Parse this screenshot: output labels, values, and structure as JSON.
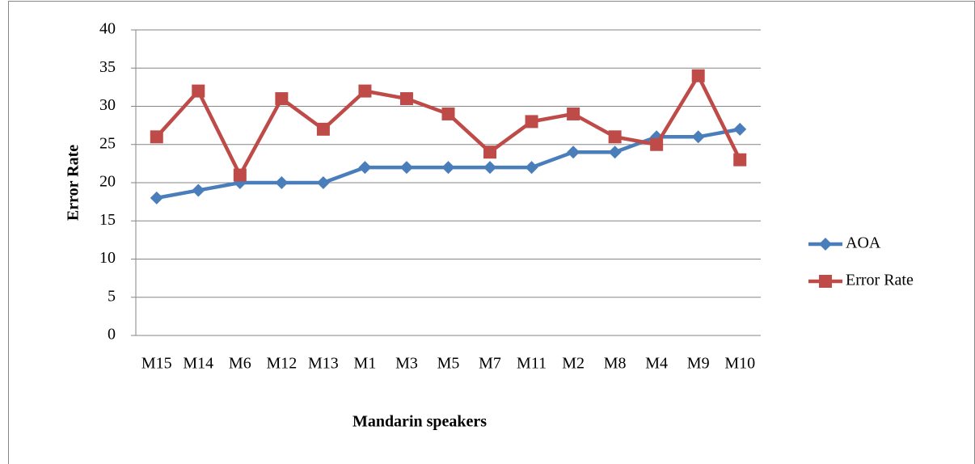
{
  "chart_data": {
    "type": "line",
    "y_label": "Error Rate",
    "x_label": "Mandarin speakers",
    "categories": [
      "M15",
      "M14",
      "M6",
      "M12",
      "M13",
      "M1",
      "M3",
      "M5",
      "M7",
      "M11",
      "M2",
      "M8",
      "M4",
      "M9",
      "M10"
    ],
    "series": [
      {
        "name": "AOA",
        "color": "#4a7ebb",
        "marker": "diamond",
        "values": [
          18,
          19,
          20,
          20,
          20,
          22,
          22,
          22,
          22,
          22,
          24,
          24,
          26,
          26,
          27
        ]
      },
      {
        "name": "Error Rate",
        "color": "#be4b48",
        "marker": "square",
        "values": [
          26,
          32,
          21,
          31,
          27,
          32,
          31,
          29,
          24,
          28,
          29,
          26,
          25,
          34,
          23
        ]
      }
    ],
    "ylim": [
      0,
      40
    ],
    "yticks": [
      0,
      5,
      10,
      15,
      20,
      25,
      30,
      35,
      40
    ],
    "grid": true,
    "legend": "right"
  }
}
